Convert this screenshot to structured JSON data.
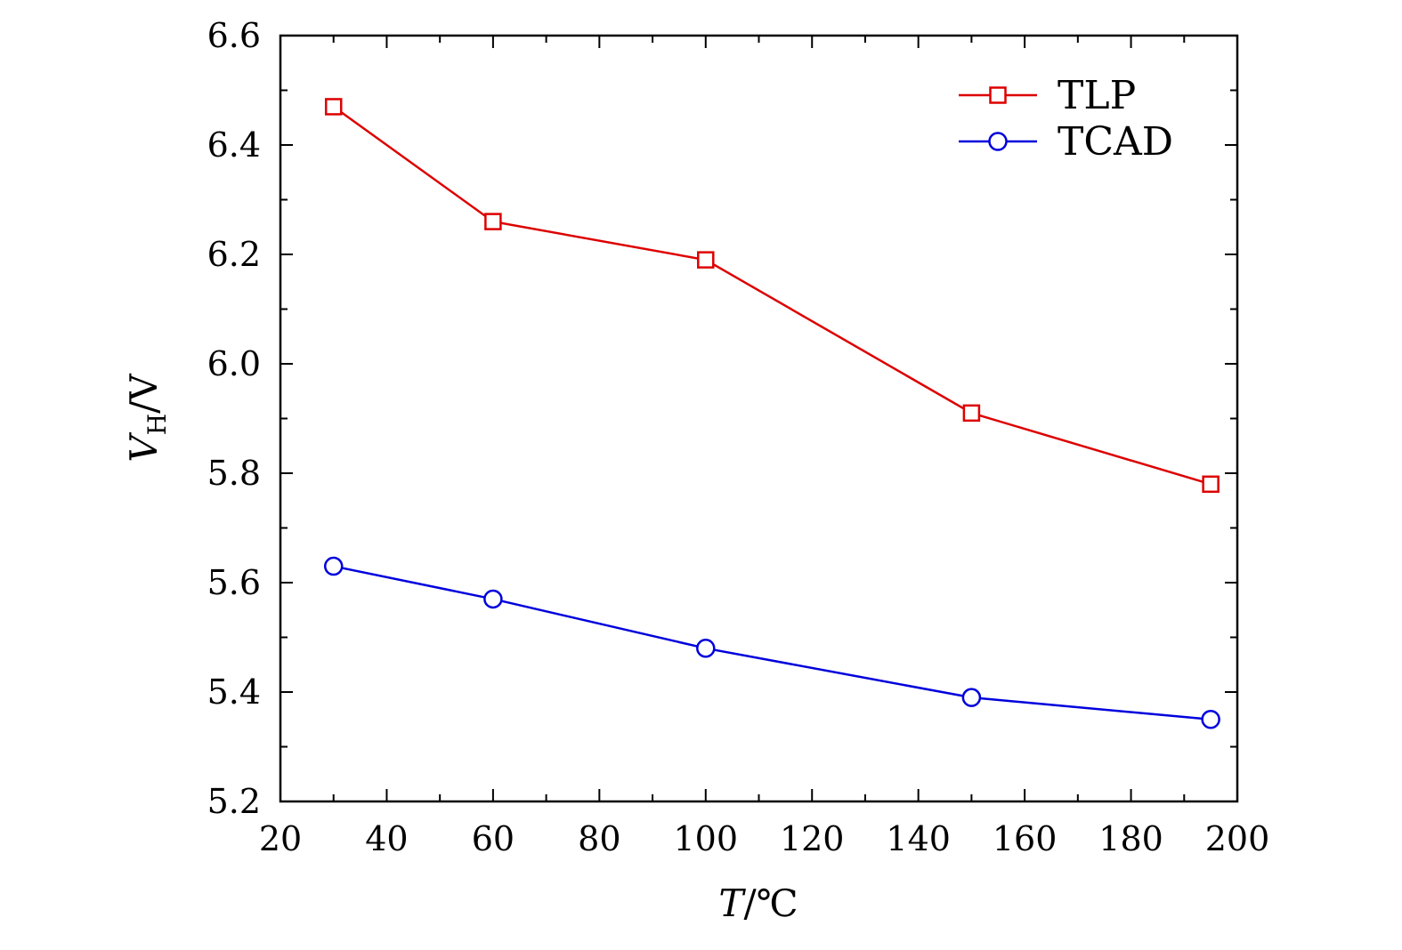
{
  "chart_data": {
    "type": "line",
    "title": "",
    "xlabel_var": "T",
    "xlabel_unit": "/℃",
    "ylabel_var": "V",
    "ylabel_sub": "H",
    "ylabel_unit": "/V",
    "xlim": [
      20,
      200
    ],
    "ylim": [
      5.2,
      6.6
    ],
    "xticks": [
      20,
      40,
      60,
      80,
      100,
      120,
      140,
      160,
      180,
      200
    ],
    "xtick_labels": [
      "20",
      "40",
      "60",
      "80",
      "100",
      "120",
      "140",
      "160",
      "180",
      "200"
    ],
    "yticks": [
      5.2,
      5.4,
      5.6,
      5.8,
      6.0,
      6.2,
      6.4,
      6.6
    ],
    "ytick_labels": [
      "5.2",
      "5.4",
      "5.6",
      "5.8",
      "6.0",
      "6.2",
      "6.4",
      "6.6"
    ],
    "grid": false,
    "legend_position": "top-right",
    "series": [
      {
        "name": "TLP",
        "color": "#dd0000",
        "marker": "square",
        "x": [
          30,
          60,
          100,
          150,
          195
        ],
        "values": [
          6.47,
          6.26,
          6.19,
          5.91,
          5.78
        ]
      },
      {
        "name": "TCAD",
        "color": "#0000dd",
        "marker": "circle",
        "x": [
          30,
          60,
          100,
          150,
          195
        ],
        "values": [
          5.63,
          5.57,
          5.48,
          5.39,
          5.35
        ]
      }
    ]
  }
}
